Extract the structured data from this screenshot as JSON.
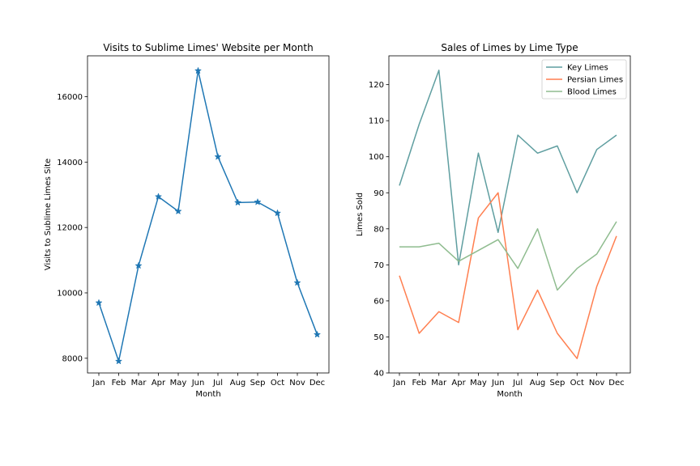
{
  "chart_data": [
    {
      "type": "line",
      "title": "Visits to Sublime Limes' Website per Month",
      "xlabel": "Month",
      "ylabel": "Visits to Sublime Limes Site",
      "categories": [
        "Jan",
        "Feb",
        "Mar",
        "Apr",
        "May",
        "Jun",
        "Jul",
        "Aug",
        "Sep",
        "Oct",
        "Nov",
        "Dec"
      ],
      "yticks": [
        8000,
        10000,
        12000,
        14000,
        16000
      ],
      "ylim": [
        7550,
        17250
      ],
      "marker": "star",
      "grid": false,
      "series": [
        {
          "values": [
            9695,
            7909,
            10831,
            12942,
            12495,
            16794,
            14161,
            12762,
            12777,
            12439,
            10309,
            8724
          ],
          "color": "#1f77b4"
        }
      ]
    },
    {
      "type": "line",
      "title": "Sales of Limes by Lime Type",
      "xlabel": "Month",
      "ylabel": "Limes Sold",
      "categories": [
        "Jan",
        "Feb",
        "Mar",
        "Apr",
        "May",
        "Jun",
        "Jul",
        "Aug",
        "Sep",
        "Oct",
        "Nov",
        "Dec"
      ],
      "yticks": [
        40,
        50,
        60,
        70,
        80,
        90,
        100,
        110,
        120
      ],
      "ylim": [
        40,
        128
      ],
      "grid": false,
      "legend_position": "top-right",
      "series": [
        {
          "name": "Key Limes",
          "color": "#5f9ea0",
          "values": [
            92,
            109,
            124,
            70,
            101,
            79,
            106,
            101,
            103,
            90,
            102,
            106
          ]
        },
        {
          "name": "Persian Limes",
          "color": "#ff7f50",
          "values": [
            67,
            51,
            57,
            54,
            83,
            90,
            52,
            63,
            51,
            44,
            64,
            78
          ]
        },
        {
          "name": "Blood Limes",
          "color": "#8fbc8f",
          "values": [
            75,
            75,
            76,
            71,
            74,
            77,
            69,
            80,
            63,
            69,
            73,
            82
          ]
        }
      ]
    }
  ]
}
